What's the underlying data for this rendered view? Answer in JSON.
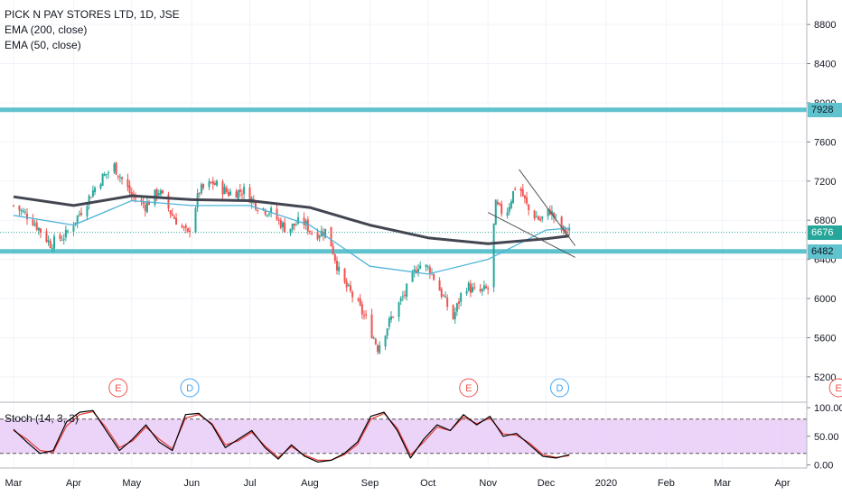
{
  "legend": {
    "symbol": "PICK N PAY STORES LTD, 1D, JSE",
    "ema200": "EMA (200, close)",
    "ema50": "EMA (50, close)"
  },
  "stoch": {
    "label": "Stoch (14, 3, 3)"
  },
  "colors": {
    "up": "#26a69a",
    "down": "#ef5350",
    "ema200": "#434651",
    "ema50": "#4fb3d9",
    "zone": "#5fc2cd",
    "stochK": "#000000",
    "stochD": "#e53935",
    "stochBand": "#e5c6f5",
    "eventE": "#ef5350",
    "eventD": "#42a5f5"
  },
  "price_labels": {
    "zone_top": "7928",
    "current": "6676",
    "zone_bottom": "6482"
  },
  "chart_data": [
    {
      "type": "candlestick",
      "title": "PICK N PAY STORES LTD, 1D, JSE",
      "x_months": [
        "Mar",
        "Apr",
        "May",
        "Jun",
        "Jul",
        "Aug",
        "Sep",
        "Oct",
        "Nov",
        "Dec",
        "2020",
        "Feb",
        "Mar",
        "Apr"
      ],
      "y_ticks": [
        "8800",
        "8400",
        "8000",
        "7600",
        "7200",
        "6800",
        "6400",
        "6000",
        "5600",
        "5200"
      ],
      "ylim": [
        4950,
        9050
      ],
      "grid": true,
      "horizontal_levels": [
        7928,
        6482
      ],
      "last_price": 6676,
      "series": [
        {
          "name": "PICK N PAY STORES LTD",
          "close_path": [
            [
              "2019-03-01",
              6950
            ],
            [
              "2019-03-10",
              6820
            ],
            [
              "2019-03-20",
              6560
            ],
            [
              "2019-03-28",
              6650
            ],
            [
              "2019-04-05",
              6900
            ],
            [
              "2019-04-14",
              7200
            ],
            [
              "2019-04-22",
              7350
            ],
            [
              "2019-05-01",
              7050
            ],
            [
              "2019-05-08",
              6950
            ],
            [
              "2019-05-15",
              7100
            ],
            [
              "2019-05-22",
              6850
            ],
            [
              "2019-05-30",
              6650
            ],
            [
              "2019-06-05",
              7100
            ],
            [
              "2019-06-12",
              7180
            ],
            [
              "2019-06-20",
              7080
            ],
            [
              "2019-06-28",
              7100
            ],
            [
              "2019-07-05",
              6950
            ],
            [
              "2019-07-12",
              6880
            ],
            [
              "2019-07-20",
              6700
            ],
            [
              "2019-07-28",
              6800
            ],
            [
              "2019-08-03",
              6650
            ],
            [
              "2019-08-10",
              6700
            ],
            [
              "2019-08-17",
              6200
            ],
            [
              "2019-08-24",
              6000
            ],
            [
              "2019-08-31",
              5750
            ],
            [
              "2019-09-05",
              5500
            ],
            [
              "2019-09-12",
              5800
            ],
            [
              "2019-09-19",
              6050
            ],
            [
              "2019-09-26",
              6350
            ],
            [
              "2019-10-02",
              6300
            ],
            [
              "2019-10-08",
              6050
            ],
            [
              "2019-10-14",
              5800
            ],
            [
              "2019-10-20",
              6150
            ],
            [
              "2019-10-26",
              6050
            ],
            [
              "2019-11-01",
              6100
            ],
            [
              "2019-11-05",
              6950
            ],
            [
              "2019-11-10",
              6850
            ],
            [
              "2019-11-16",
              7200
            ],
            [
              "2019-11-22",
              6900
            ],
            [
              "2019-11-28",
              6800
            ],
            [
              "2019-12-03",
              6900
            ],
            [
              "2019-12-09",
              6700
            ],
            [
              "2019-12-13",
              6676
            ]
          ]
        },
        {
          "name": "EMA (200, close)",
          "points": [
            [
              "2019-03-01",
              7040
            ],
            [
              "2019-04-01",
              6950
            ],
            [
              "2019-05-01",
              7050
            ],
            [
              "2019-06-01",
              7010
            ],
            [
              "2019-07-01",
              7000
            ],
            [
              "2019-08-01",
              6930
            ],
            [
              "2019-09-01",
              6750
            ],
            [
              "2019-10-01",
              6620
            ],
            [
              "2019-11-01",
              6560
            ],
            [
              "2019-12-01",
              6610
            ],
            [
              "2019-12-13",
              6640
            ]
          ]
        },
        {
          "name": "EMA (50, close)",
          "points": [
            [
              "2019-03-01",
              6850
            ],
            [
              "2019-04-01",
              6750
            ],
            [
              "2019-05-01",
              7000
            ],
            [
              "2019-06-01",
              6950
            ],
            [
              "2019-07-01",
              6950
            ],
            [
              "2019-08-01",
              6750
            ],
            [
              "2019-09-01",
              6330
            ],
            [
              "2019-10-01",
              6250
            ],
            [
              "2019-11-01",
              6400
            ],
            [
              "2019-12-01",
              6700
            ],
            [
              "2019-12-13",
              6720
            ]
          ]
        }
      ],
      "trendlines": [
        {
          "from": [
            "2019-11-17",
            7320
          ],
          "to": [
            "2019-12-16",
            6540
          ]
        },
        {
          "from": [
            "2019-11-01",
            6880
          ],
          "to": [
            "2019-12-16",
            6420
          ]
        }
      ],
      "events": [
        {
          "label": "E",
          "date": "2019-04-24"
        },
        {
          "label": "D",
          "date": "2019-05-31"
        },
        {
          "label": "E",
          "date": "2019-10-22"
        },
        {
          "label": "D",
          "date": "2019-12-08"
        },
        {
          "label": "E",
          "date": "2020-04-30"
        }
      ]
    },
    {
      "type": "line",
      "title": "Stoch (14, 3, 3)",
      "y_ticks": [
        "100.00",
        "50.00",
        "0.00"
      ],
      "ylim": [
        -4,
        108
      ],
      "bands": [
        20,
        80
      ],
      "series": [
        {
          "name": "%K",
          "values": [
            62,
            40,
            20,
            25,
            75,
            92,
            95,
            60,
            25,
            45,
            70,
            40,
            25,
            88,
            90,
            70,
            30,
            45,
            60,
            30,
            10,
            35,
            15,
            5,
            8,
            20,
            40,
            85,
            92,
            60,
            12,
            45,
            70,
            60,
            88,
            70,
            85,
            50,
            55,
            35,
            15,
            12,
            18
          ]
        },
        {
          "name": "%D",
          "values": [
            60,
            45,
            25,
            22,
            68,
            88,
            93,
            65,
            30,
            42,
            66,
            45,
            28,
            82,
            88,
            72,
            35,
            42,
            57,
            33,
            13,
            32,
            17,
            8,
            8,
            18,
            36,
            80,
            90,
            64,
            17,
            40,
            66,
            60,
            84,
            72,
            82,
            54,
            52,
            38,
            18,
            13,
            16
          ]
        }
      ]
    }
  ]
}
